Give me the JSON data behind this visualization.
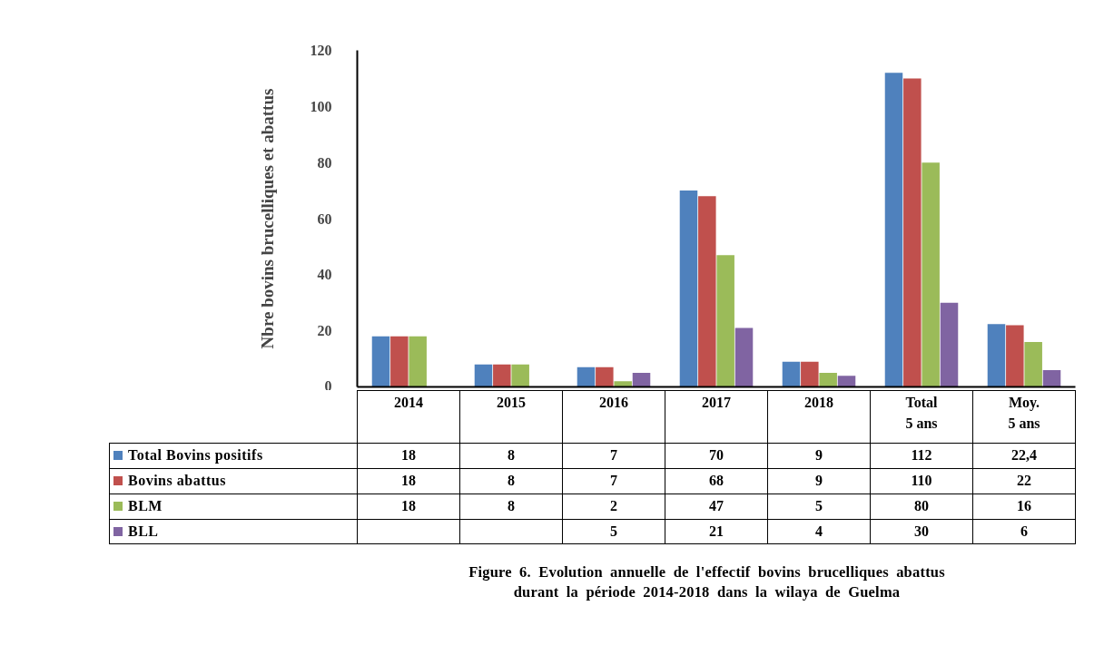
{
  "chart_data": {
    "type": "bar",
    "categories": [
      "2014",
      "2015",
      "2016",
      "2017",
      "2018",
      "Total\n5 ans",
      "Moy.\n5 ans"
    ],
    "series": [
      {
        "name": "Total Bovins positifs",
        "color": "#4f81bd",
        "values": [
          18,
          8,
          7,
          70,
          9,
          112,
          22.4
        ],
        "value_labels": [
          "18",
          "8",
          "7",
          "70",
          "9",
          "112",
          "22,4"
        ]
      },
      {
        "name": "Bovins abattus",
        "color": "#c0504d",
        "values": [
          18,
          8,
          7,
          68,
          9,
          110,
          22
        ],
        "value_labels": [
          "18",
          "8",
          "7",
          "68",
          "9",
          "110",
          "22"
        ]
      },
      {
        "name": "BLM",
        "color": "#9bbb59",
        "values": [
          18,
          8,
          2,
          47,
          5,
          80,
          16
        ],
        "value_labels": [
          "18",
          "8",
          "2",
          "47",
          "5",
          "80",
          "16"
        ]
      },
      {
        "name": "BLL",
        "color": "#8064a2",
        "values": [
          null,
          null,
          5,
          21,
          4,
          30,
          6
        ],
        "value_labels": [
          null,
          null,
          "5",
          "21",
          "4",
          "30",
          "6"
        ]
      }
    ],
    "ylabel": "Nbre bovins brucelliques et abattus",
    "ylim": [
      0,
      120
    ],
    "yticks": [
      0,
      20,
      40,
      60,
      80,
      100,
      120
    ],
    "legend": "bottom",
    "annotations": [
      "Figure 6. Evolution annuelle de l'effectif bovins brucelliques abattus durant la période 2014-2018 dans la wilaya de Guelma"
    ]
  }
}
